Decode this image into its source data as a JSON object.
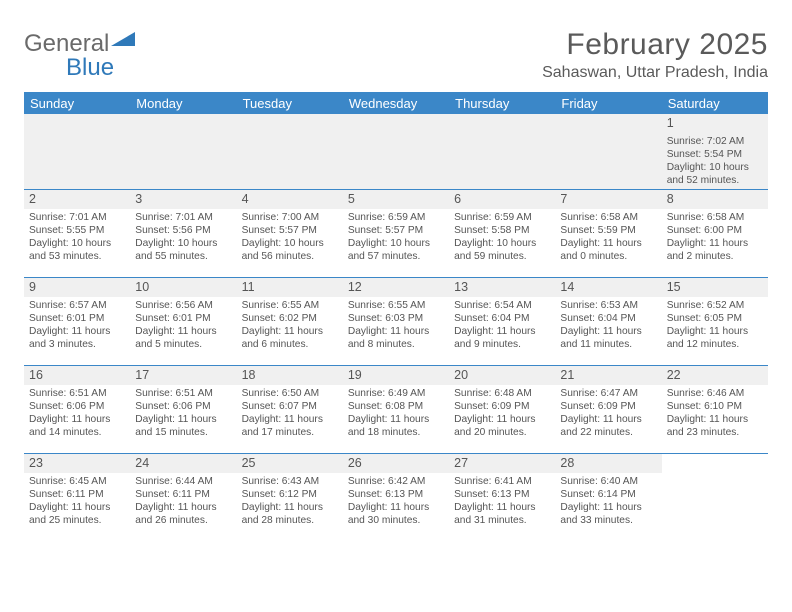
{
  "logo": {
    "word1": "General",
    "word2": "Blue"
  },
  "title": "February 2025",
  "location": "Sahaswan, Uttar Pradesh, India",
  "colors": {
    "header_bg": "#3b87c8",
    "header_text": "#ffffff",
    "rule": "#3b87c8",
    "text": "#555555",
    "gray_strip": "#f0f0f0",
    "logo_gray": "#6a6a6a",
    "logo_blue": "#2f79b9"
  },
  "weekdays": [
    "Sunday",
    "Monday",
    "Tuesday",
    "Wednesday",
    "Thursday",
    "Friday",
    "Saturday"
  ],
  "weeks": [
    [
      null,
      null,
      null,
      null,
      null,
      null,
      {
        "n": "1",
        "sr": "Sunrise: 7:02 AM",
        "ss": "Sunset: 5:54 PM",
        "dl1": "Daylight: 10 hours",
        "dl2": "and 52 minutes."
      }
    ],
    [
      {
        "n": "2",
        "sr": "Sunrise: 7:01 AM",
        "ss": "Sunset: 5:55 PM",
        "dl1": "Daylight: 10 hours",
        "dl2": "and 53 minutes."
      },
      {
        "n": "3",
        "sr": "Sunrise: 7:01 AM",
        "ss": "Sunset: 5:56 PM",
        "dl1": "Daylight: 10 hours",
        "dl2": "and 55 minutes."
      },
      {
        "n": "4",
        "sr": "Sunrise: 7:00 AM",
        "ss": "Sunset: 5:57 PM",
        "dl1": "Daylight: 10 hours",
        "dl2": "and 56 minutes."
      },
      {
        "n": "5",
        "sr": "Sunrise: 6:59 AM",
        "ss": "Sunset: 5:57 PM",
        "dl1": "Daylight: 10 hours",
        "dl2": "and 57 minutes."
      },
      {
        "n": "6",
        "sr": "Sunrise: 6:59 AM",
        "ss": "Sunset: 5:58 PM",
        "dl1": "Daylight: 10 hours",
        "dl2": "and 59 minutes."
      },
      {
        "n": "7",
        "sr": "Sunrise: 6:58 AM",
        "ss": "Sunset: 5:59 PM",
        "dl1": "Daylight: 11 hours",
        "dl2": "and 0 minutes."
      },
      {
        "n": "8",
        "sr": "Sunrise: 6:58 AM",
        "ss": "Sunset: 6:00 PM",
        "dl1": "Daylight: 11 hours",
        "dl2": "and 2 minutes."
      }
    ],
    [
      {
        "n": "9",
        "sr": "Sunrise: 6:57 AM",
        "ss": "Sunset: 6:01 PM",
        "dl1": "Daylight: 11 hours",
        "dl2": "and 3 minutes."
      },
      {
        "n": "10",
        "sr": "Sunrise: 6:56 AM",
        "ss": "Sunset: 6:01 PM",
        "dl1": "Daylight: 11 hours",
        "dl2": "and 5 minutes."
      },
      {
        "n": "11",
        "sr": "Sunrise: 6:55 AM",
        "ss": "Sunset: 6:02 PM",
        "dl1": "Daylight: 11 hours",
        "dl2": "and 6 minutes."
      },
      {
        "n": "12",
        "sr": "Sunrise: 6:55 AM",
        "ss": "Sunset: 6:03 PM",
        "dl1": "Daylight: 11 hours",
        "dl2": "and 8 minutes."
      },
      {
        "n": "13",
        "sr": "Sunrise: 6:54 AM",
        "ss": "Sunset: 6:04 PM",
        "dl1": "Daylight: 11 hours",
        "dl2": "and 9 minutes."
      },
      {
        "n": "14",
        "sr": "Sunrise: 6:53 AM",
        "ss": "Sunset: 6:04 PM",
        "dl1": "Daylight: 11 hours",
        "dl2": "and 11 minutes."
      },
      {
        "n": "15",
        "sr": "Sunrise: 6:52 AM",
        "ss": "Sunset: 6:05 PM",
        "dl1": "Daylight: 11 hours",
        "dl2": "and 12 minutes."
      }
    ],
    [
      {
        "n": "16",
        "sr": "Sunrise: 6:51 AM",
        "ss": "Sunset: 6:06 PM",
        "dl1": "Daylight: 11 hours",
        "dl2": "and 14 minutes."
      },
      {
        "n": "17",
        "sr": "Sunrise: 6:51 AM",
        "ss": "Sunset: 6:06 PM",
        "dl1": "Daylight: 11 hours",
        "dl2": "and 15 minutes."
      },
      {
        "n": "18",
        "sr": "Sunrise: 6:50 AM",
        "ss": "Sunset: 6:07 PM",
        "dl1": "Daylight: 11 hours",
        "dl2": "and 17 minutes."
      },
      {
        "n": "19",
        "sr": "Sunrise: 6:49 AM",
        "ss": "Sunset: 6:08 PM",
        "dl1": "Daylight: 11 hours",
        "dl2": "and 18 minutes."
      },
      {
        "n": "20",
        "sr": "Sunrise: 6:48 AM",
        "ss": "Sunset: 6:09 PM",
        "dl1": "Daylight: 11 hours",
        "dl2": "and 20 minutes."
      },
      {
        "n": "21",
        "sr": "Sunrise: 6:47 AM",
        "ss": "Sunset: 6:09 PM",
        "dl1": "Daylight: 11 hours",
        "dl2": "and 22 minutes."
      },
      {
        "n": "22",
        "sr": "Sunrise: 6:46 AM",
        "ss": "Sunset: 6:10 PM",
        "dl1": "Daylight: 11 hours",
        "dl2": "and 23 minutes."
      }
    ],
    [
      {
        "n": "23",
        "sr": "Sunrise: 6:45 AM",
        "ss": "Sunset: 6:11 PM",
        "dl1": "Daylight: 11 hours",
        "dl2": "and 25 minutes."
      },
      {
        "n": "24",
        "sr": "Sunrise: 6:44 AM",
        "ss": "Sunset: 6:11 PM",
        "dl1": "Daylight: 11 hours",
        "dl2": "and 26 minutes."
      },
      {
        "n": "25",
        "sr": "Sunrise: 6:43 AM",
        "ss": "Sunset: 6:12 PM",
        "dl1": "Daylight: 11 hours",
        "dl2": "and 28 minutes."
      },
      {
        "n": "26",
        "sr": "Sunrise: 6:42 AM",
        "ss": "Sunset: 6:13 PM",
        "dl1": "Daylight: 11 hours",
        "dl2": "and 30 minutes."
      },
      {
        "n": "27",
        "sr": "Sunrise: 6:41 AM",
        "ss": "Sunset: 6:13 PM",
        "dl1": "Daylight: 11 hours",
        "dl2": "and 31 minutes."
      },
      {
        "n": "28",
        "sr": "Sunrise: 6:40 AM",
        "ss": "Sunset: 6:14 PM",
        "dl1": "Daylight: 11 hours",
        "dl2": "and 33 minutes."
      },
      null
    ]
  ]
}
